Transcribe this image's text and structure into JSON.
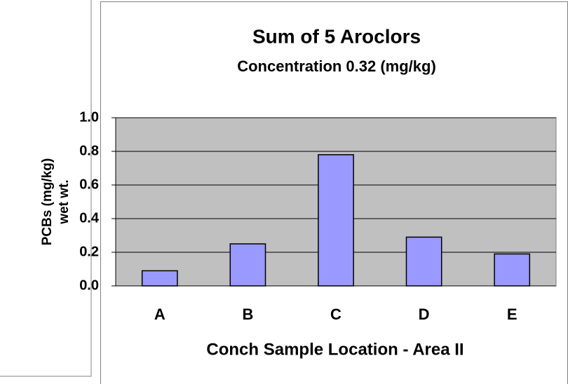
{
  "chart_data": {
    "type": "bar",
    "title": "Sum of 5 Aroclors",
    "subtitle": "Concentration 0.32 (mg/kg)",
    "xlabel": "Conch Sample Location - Area II",
    "ylabel": [
      "PCBs (mg/kg)",
      "wet wt."
    ],
    "categories": [
      "A",
      "B",
      "C",
      "D",
      "E"
    ],
    "values": [
      0.09,
      0.25,
      0.78,
      0.29,
      0.19
    ],
    "color": "#9999ff",
    "ylim": [
      0,
      1
    ],
    "yticks": [
      {
        "value": 0,
        "label": "0.0"
      },
      {
        "value": 0.2,
        "label": "0.2"
      },
      {
        "value": 0.4,
        "label": "0.4"
      },
      {
        "value": 0.6,
        "label": "0.6"
      },
      {
        "value": 0.8,
        "label": "0.8"
      },
      {
        "value": 1,
        "label": "1.0"
      }
    ],
    "grid": true
  }
}
